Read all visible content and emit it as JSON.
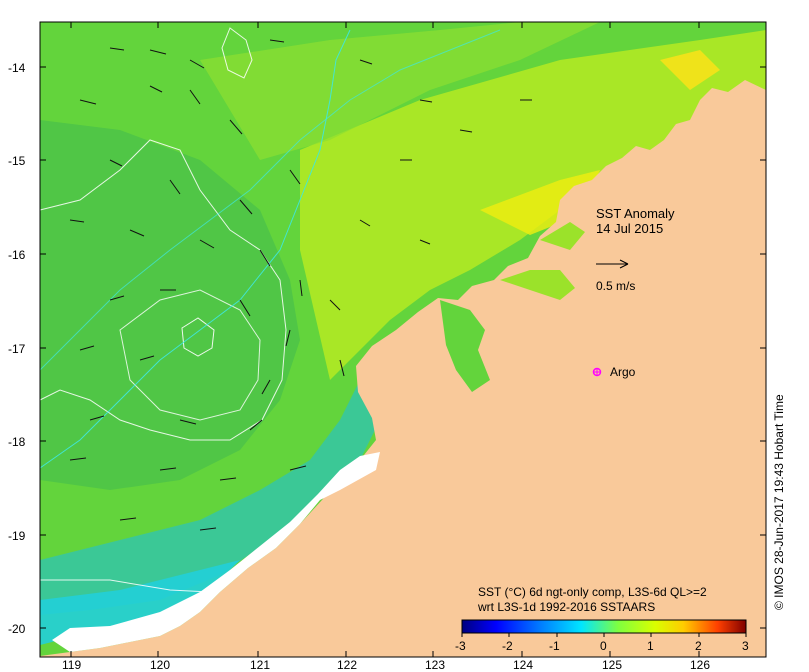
{
  "map": {
    "lat_ticks": [
      "-14",
      "-15",
      "-16",
      "-17",
      "-18",
      "-19",
      "-20"
    ],
    "lon_ticks": [
      "119",
      "120",
      "121",
      "122",
      "123",
      "124",
      "125",
      "126"
    ]
  },
  "title": {
    "line1": "SST Anomaly",
    "line2": "14 Jul 2015"
  },
  "scale_arrow": {
    "label": "0.5 m/s"
  },
  "argo": {
    "label": "Argo",
    "color": "#ff00ff"
  },
  "legend": {
    "line1": "SST (°C) 6d ngt-only comp, L3S-6d QL>=2",
    "line2": "wrt L3S-1d 1992-2016 SSTAARS",
    "ticks": [
      "-3",
      "-2",
      "-1",
      "0",
      "1",
      "2",
      "3"
    ],
    "colors": [
      "#00007f",
      "#0000ff",
      "#007fff",
      "#00ffff",
      "#7fff7f",
      "#ffff00",
      "#ff7f00",
      "#ff0000",
      "#7f0000"
    ]
  },
  "credit": "© IMOS 28-Jun-2017 19:43 Hobart Time",
  "colors": {
    "land": "#f9c99a",
    "ocean_main": "#6ddc3a",
    "coast_white": "#ffffff"
  }
}
